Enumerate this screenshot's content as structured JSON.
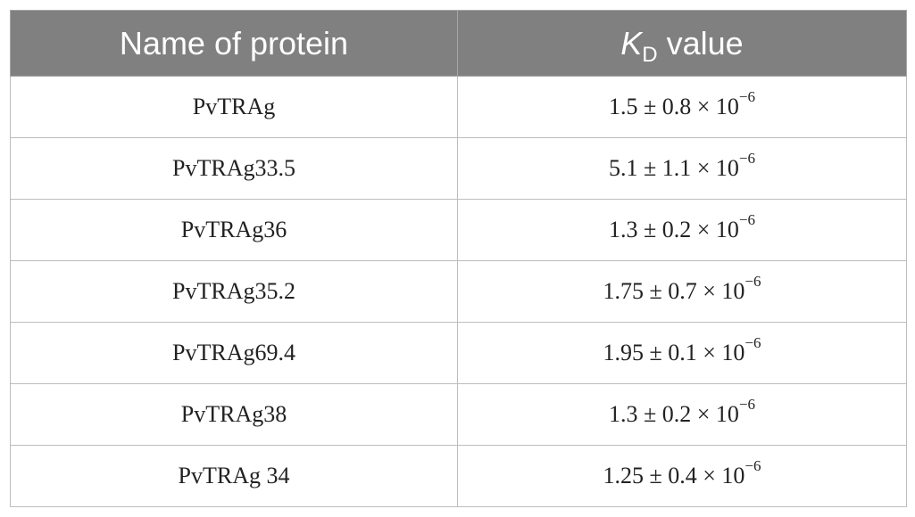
{
  "table": {
    "header": {
      "col1": "Name of protein",
      "col2_symbol": "K",
      "col2_subscript": "D",
      "col2_suffix": "value"
    },
    "rows": [
      {
        "name": "PvTRAg",
        "value": "1.5 ± 0.8 × 10",
        "exponent": "−6"
      },
      {
        "name": "PvTRAg33.5",
        "value": "5.1 ± 1.1 × 10",
        "exponent": "−6"
      },
      {
        "name": "PvTRAg36",
        "value": "1.3 ± 0.2 × 10",
        "exponent": "−6"
      },
      {
        "name": "PvTRAg35.2",
        "value": "1.75 ± 0.7 × 10",
        "exponent": "−6"
      },
      {
        "name": "PvTRAg69.4",
        "value": "1.95 ± 0.1 × 10",
        "exponent": "−6"
      },
      {
        "name": "PvTRAg38",
        "value": "1.3 ± 0.2 × 10",
        "exponent": "−6"
      },
      {
        "name": "PvTRAg 34",
        "value": "1.25 ± 0.4 × 10",
        "exponent": "−6"
      }
    ]
  }
}
